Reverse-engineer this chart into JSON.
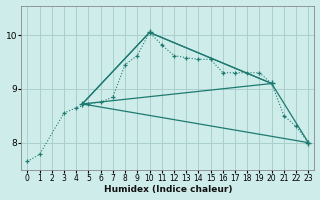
{
  "xlabel": "Humidex (Indice chaleur)",
  "xlim": [
    -0.5,
    23.5
  ],
  "ylim": [
    7.5,
    10.55
  ],
  "yticks": [
    8,
    9,
    10
  ],
  "xticks": [
    0,
    1,
    2,
    3,
    4,
    5,
    6,
    7,
    8,
    9,
    10,
    11,
    12,
    13,
    14,
    15,
    16,
    17,
    18,
    19,
    20,
    21,
    22,
    23
  ],
  "bg_color": "#ceecea",
  "line_color": "#1d7a70",
  "grid_major_color": "#b0d4d0",
  "grid_minor_color": "#b0d4d0",
  "main_curve_x": [
    0,
    1,
    3,
    4,
    5,
    6,
    7,
    8,
    9,
    10,
    11,
    12,
    13,
    14,
    15,
    16,
    17,
    18,
    19,
    20,
    21,
    22,
    23
  ],
  "main_curve_y": [
    7.65,
    7.78,
    8.55,
    8.65,
    8.72,
    8.75,
    8.85,
    9.45,
    9.62,
    10.05,
    9.82,
    9.62,
    9.58,
    9.55,
    9.55,
    9.3,
    9.3,
    9.3,
    9.3,
    9.1,
    8.5,
    8.3,
    8.0
  ],
  "line1_x": [
    4.5,
    10,
    20
  ],
  "line1_y": [
    8.72,
    10.05,
    9.1
  ],
  "line2_x": [
    4.5,
    10,
    20,
    23
  ],
  "line2_y": [
    8.72,
    10.05,
    9.1,
    8.0
  ],
  "line3_x": [
    4.5,
    20
  ],
  "line3_y": [
    8.72,
    9.1
  ],
  "line4_x": [
    4.5,
    23
  ],
  "line4_y": [
    8.72,
    8.0
  ]
}
